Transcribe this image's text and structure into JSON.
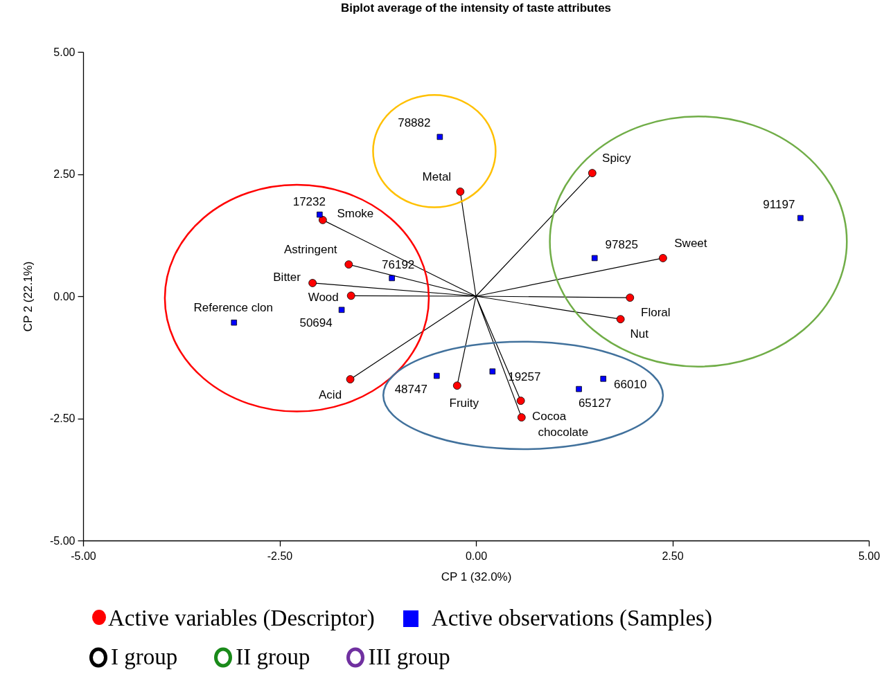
{
  "chart_data": {
    "type": "scatter",
    "title": "Biplot average of the intensity of taste attributes",
    "xlabel": "CP 1 (32.0%)",
    "ylabel": "CP 2 (22.1%)",
    "xlim": [
      -5,
      5
    ],
    "ylim": [
      -5,
      5
    ],
    "xticks": [
      {
        "value": -5,
        "label": "-5.00"
      },
      {
        "value": -2.5,
        "label": "-2.50"
      },
      {
        "value": 0,
        "label": "0.00"
      },
      {
        "value": 2.5,
        "label": "2.50"
      },
      {
        "value": 5,
        "label": "5.00"
      }
    ],
    "yticks": [
      {
        "value": -5,
        "label": "-5.00"
      },
      {
        "value": -2.5,
        "label": "-2.50"
      },
      {
        "value": 0,
        "label": "0.00"
      },
      {
        "value": 2.5,
        "label": "2.50"
      },
      {
        "value": 5,
        "label": "5.00"
      }
    ],
    "grid": false,
    "legend": "bottom",
    "series": [
      {
        "type": "line",
        "color": "#000000",
        "x": [
          0,
          1.48,
          0,
          -0.2,
          0,
          -1.95,
          0,
          -1.62,
          0,
          -2.08,
          0,
          -1.59,
          0,
          2.38,
          0,
          1.96,
          0,
          1.84,
          0,
          -1.6,
          0,
          -0.24,
          0,
          0.57,
          0,
          0.58
        ],
        "values": [
          0,
          2.52,
          0,
          2.14,
          0,
          1.56,
          0,
          0.65,
          0,
          0.27,
          0,
          0.01,
          0,
          0.78,
          0,
          -0.03,
          0,
          -0.47,
          0,
          -1.7,
          0,
          -1.83,
          0,
          -2.14,
          0,
          -2.48
        ]
      },
      {
        "name": "Active variables (Descriptor)",
        "color": "#ff0000",
        "marker": "circle",
        "x": [
          1.48,
          -0.2,
          -1.95,
          -1.62,
          -2.08,
          -1.59,
          2.38,
          1.96,
          1.84,
          -1.6,
          -0.24,
          0.57,
          0.58
        ],
        "values": [
          2.52,
          2.14,
          1.56,
          0.65,
          0.27,
          0.01,
          0.78,
          -0.03,
          -0.47,
          -1.7,
          -1.83,
          -2.14,
          -2.48
        ]
      },
      {
        "name": "Active observations (Samples)",
        "color": "#0000ff",
        "marker": "square",
        "x": [
          -0.46,
          -1.99,
          -1.07,
          -1.71,
          -3.08,
          1.51,
          4.13,
          -0.5,
          0.21,
          1.31,
          1.62
        ],
        "values": [
          3.26,
          1.67,
          0.37,
          -0.28,
          -0.54,
          0.78,
          1.6,
          -1.63,
          -1.54,
          -1.9,
          -1.69
        ]
      }
    ],
    "annotations": [
      {
        "text": "Spicy",
        "x": 1.48,
        "y": 2.52
      },
      {
        "text": "Metal",
        "x": -0.2,
        "y": 2.14
      },
      {
        "text": "Smoke",
        "x": -1.95,
        "y": 1.56
      },
      {
        "text": "Astringent",
        "x": -1.62,
        "y": 0.65
      },
      {
        "text": "Bitter",
        "x": -2.08,
        "y": 0.27
      },
      {
        "text": "Wood",
        "x": -1.59,
        "y": 0.01
      },
      {
        "text": "Sweet",
        "x": 2.38,
        "y": 0.78
      },
      {
        "text": "Floral",
        "x": 1.96,
        "y": -0.03
      },
      {
        "text": "Nut",
        "x": 1.84,
        "y": -0.47
      },
      {
        "text": "Acid",
        "x": -1.6,
        "y": -1.7
      },
      {
        "text": "Fruity",
        "x": -0.24,
        "y": -1.83
      },
      {
        "text": "Cocoa",
        "x": 0.57,
        "y": -2.14
      },
      {
        "text": "chocolate",
        "x": 0.58,
        "y": -2.48
      },
      {
        "text": "78882",
        "x": -0.46,
        "y": 3.26
      },
      {
        "text": "17232",
        "x": -1.99,
        "y": 1.67
      },
      {
        "text": "76192",
        "x": -1.07,
        "y": 0.37
      },
      {
        "text": "50694",
        "x": -1.71,
        "y": -0.28
      },
      {
        "text": "Reference clon",
        "x": -3.08,
        "y": -0.54
      },
      {
        "text": "97825",
        "x": 1.51,
        "y": 0.78
      },
      {
        "text": "91197",
        "x": 4.13,
        "y": 1.6
      },
      {
        "text": "48747",
        "x": -0.5,
        "y": -1.63
      },
      {
        "text": "19257",
        "x": 0.21,
        "y": -1.54
      },
      {
        "text": "65127",
        "x": 1.31,
        "y": -1.9
      },
      {
        "text": "66010",
        "x": 1.62,
        "y": -1.69
      },
      "I group",
      "II group",
      "III group"
    ]
  }
}
